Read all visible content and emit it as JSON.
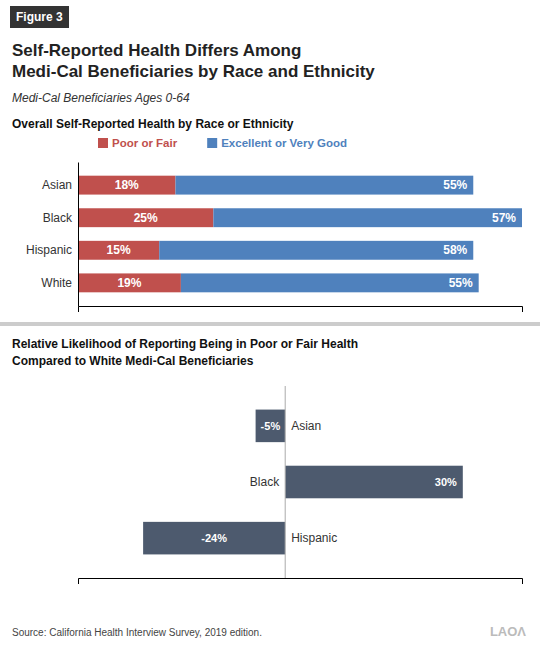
{
  "title": "Self-Reported Health Differs Among\nMedi-Cal Beneficiaries by Race and Ethnicity",
  "subtitle": "Medi-Cal Beneficiaries Ages 0-64",
  "annotations": [
    "Figure 3",
    "Source: California Health Interview Survey, 2019 edition.",
    "LAOΛ"
  ],
  "chart_data": [
    {
      "type": "bar",
      "orientation": "horizontal",
      "stacked": true,
      "title": "Overall Self-Reported Health by Race or Ethnicity",
      "categories": [
        "Asian",
        "Black",
        "Hispanic",
        "White"
      ],
      "series": [
        {
          "name": "Poor or Fair",
          "color": "#c0504d",
          "values": [
            18,
            25,
            15,
            19
          ],
          "value_labels": [
            "18%",
            "25%",
            "15%",
            "19%"
          ]
        },
        {
          "name": "Excellent or Very Good",
          "color": "#4f81bd",
          "values": [
            55,
            57,
            58,
            55
          ],
          "value_labels": [
            "55%",
            "57%",
            "58%",
            "55%"
          ]
        }
      ],
      "xlim": [
        0,
        82
      ],
      "legend": "top",
      "data_labels": true,
      "tick_labels": "y",
      "grid": false
    },
    {
      "type": "bar",
      "orientation": "horizontal",
      "title": "Relative Likelihood of Reporting Being in Poor or Fair Health\nCompared to White Medi-Cal Beneficiaries",
      "categories": [
        "Asian",
        "Black",
        "Hispanic"
      ],
      "values": [
        -5,
        30,
        -24
      ],
      "value_labels": [
        "-5%",
        "30%",
        "-24%"
      ],
      "color": "#4d5a6e",
      "xlim": [
        -35,
        40
      ],
      "data_labels": true,
      "tick_labels": "y",
      "grid": false
    }
  ]
}
